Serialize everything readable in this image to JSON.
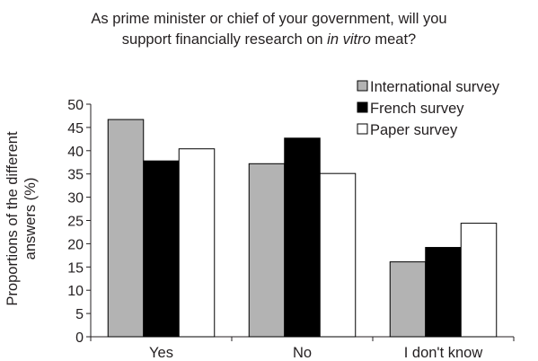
{
  "chart_data": {
    "type": "bar",
    "title_parts": [
      {
        "text": "As prime minister or chief of your government, will you",
        "italic": false
      },
      {
        "text": "support financially research on ",
        "italic": false
      },
      {
        "text": "in vitro",
        "italic": true
      },
      {
        "text": " meat?",
        "italic": false
      }
    ],
    "title_line_break_after_part": 0,
    "ylabel_lines": [
      "Proportions of the different",
      "answers (%)"
    ],
    "xlabel": "",
    "ylim": [
      0,
      50
    ],
    "y_ticks": [
      0,
      5,
      10,
      15,
      20,
      25,
      30,
      35,
      40,
      45,
      50
    ],
    "categories": [
      "Yes",
      "No",
      "I don't know"
    ],
    "series": [
      {
        "name": "International survey",
        "color": "#b3b3b3",
        "values": [
          46.7,
          37.2,
          16.1
        ]
      },
      {
        "name": "French survey",
        "color": "#000000",
        "values": [
          37.8,
          42.7,
          19.2
        ]
      },
      {
        "name": "Paper survey",
        "color": "#ffffff",
        "values": [
          40.4,
          35.1,
          24.4
        ]
      }
    ],
    "legend_position": "top-right",
    "grid": false,
    "bar_outline_color": "#000000"
  }
}
